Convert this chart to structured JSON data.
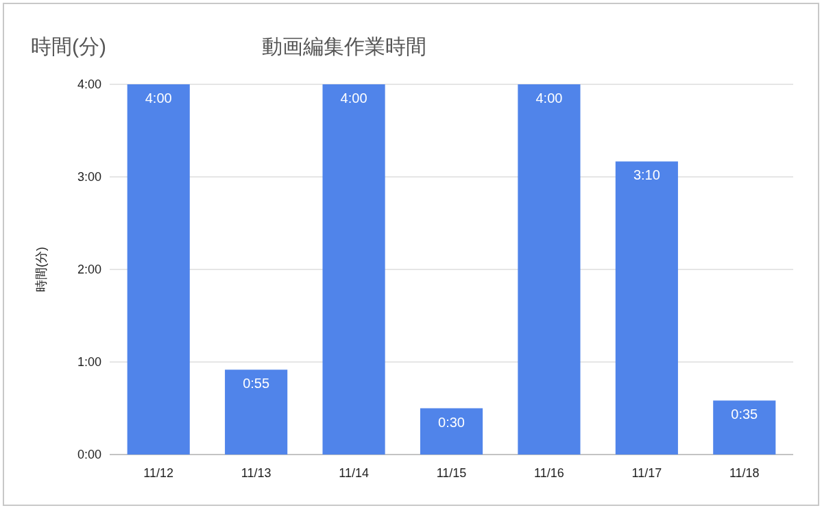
{
  "chart_data": {
    "type": "bar",
    "title": "動画編集作業時間",
    "ylabel": "時間(分)",
    "annotations": [
      "時間(分)"
    ],
    "categories": [
      "11/12",
      "11/13",
      "11/14",
      "11/15",
      "11/16",
      "11/17",
      "11/18"
    ],
    "values": [
      4,
      0.9167,
      4,
      0.5,
      4,
      3.1667,
      0.5833
    ],
    "value_labels": [
      "4:00",
      "0:55",
      "4:00",
      "0:30",
      "4:00",
      "3:10",
      "0:35"
    ],
    "color": "#5084ea",
    "ylim": [
      0,
      4
    ],
    "yticks": [
      {
        "value": 0,
        "label": "0:00"
      },
      {
        "value": 1,
        "label": "1:00"
      },
      {
        "value": 2,
        "label": "2:00"
      },
      {
        "value": 3,
        "label": "3:00"
      },
      {
        "value": 4,
        "label": "4:00"
      }
    ],
    "grid": "y"
  }
}
